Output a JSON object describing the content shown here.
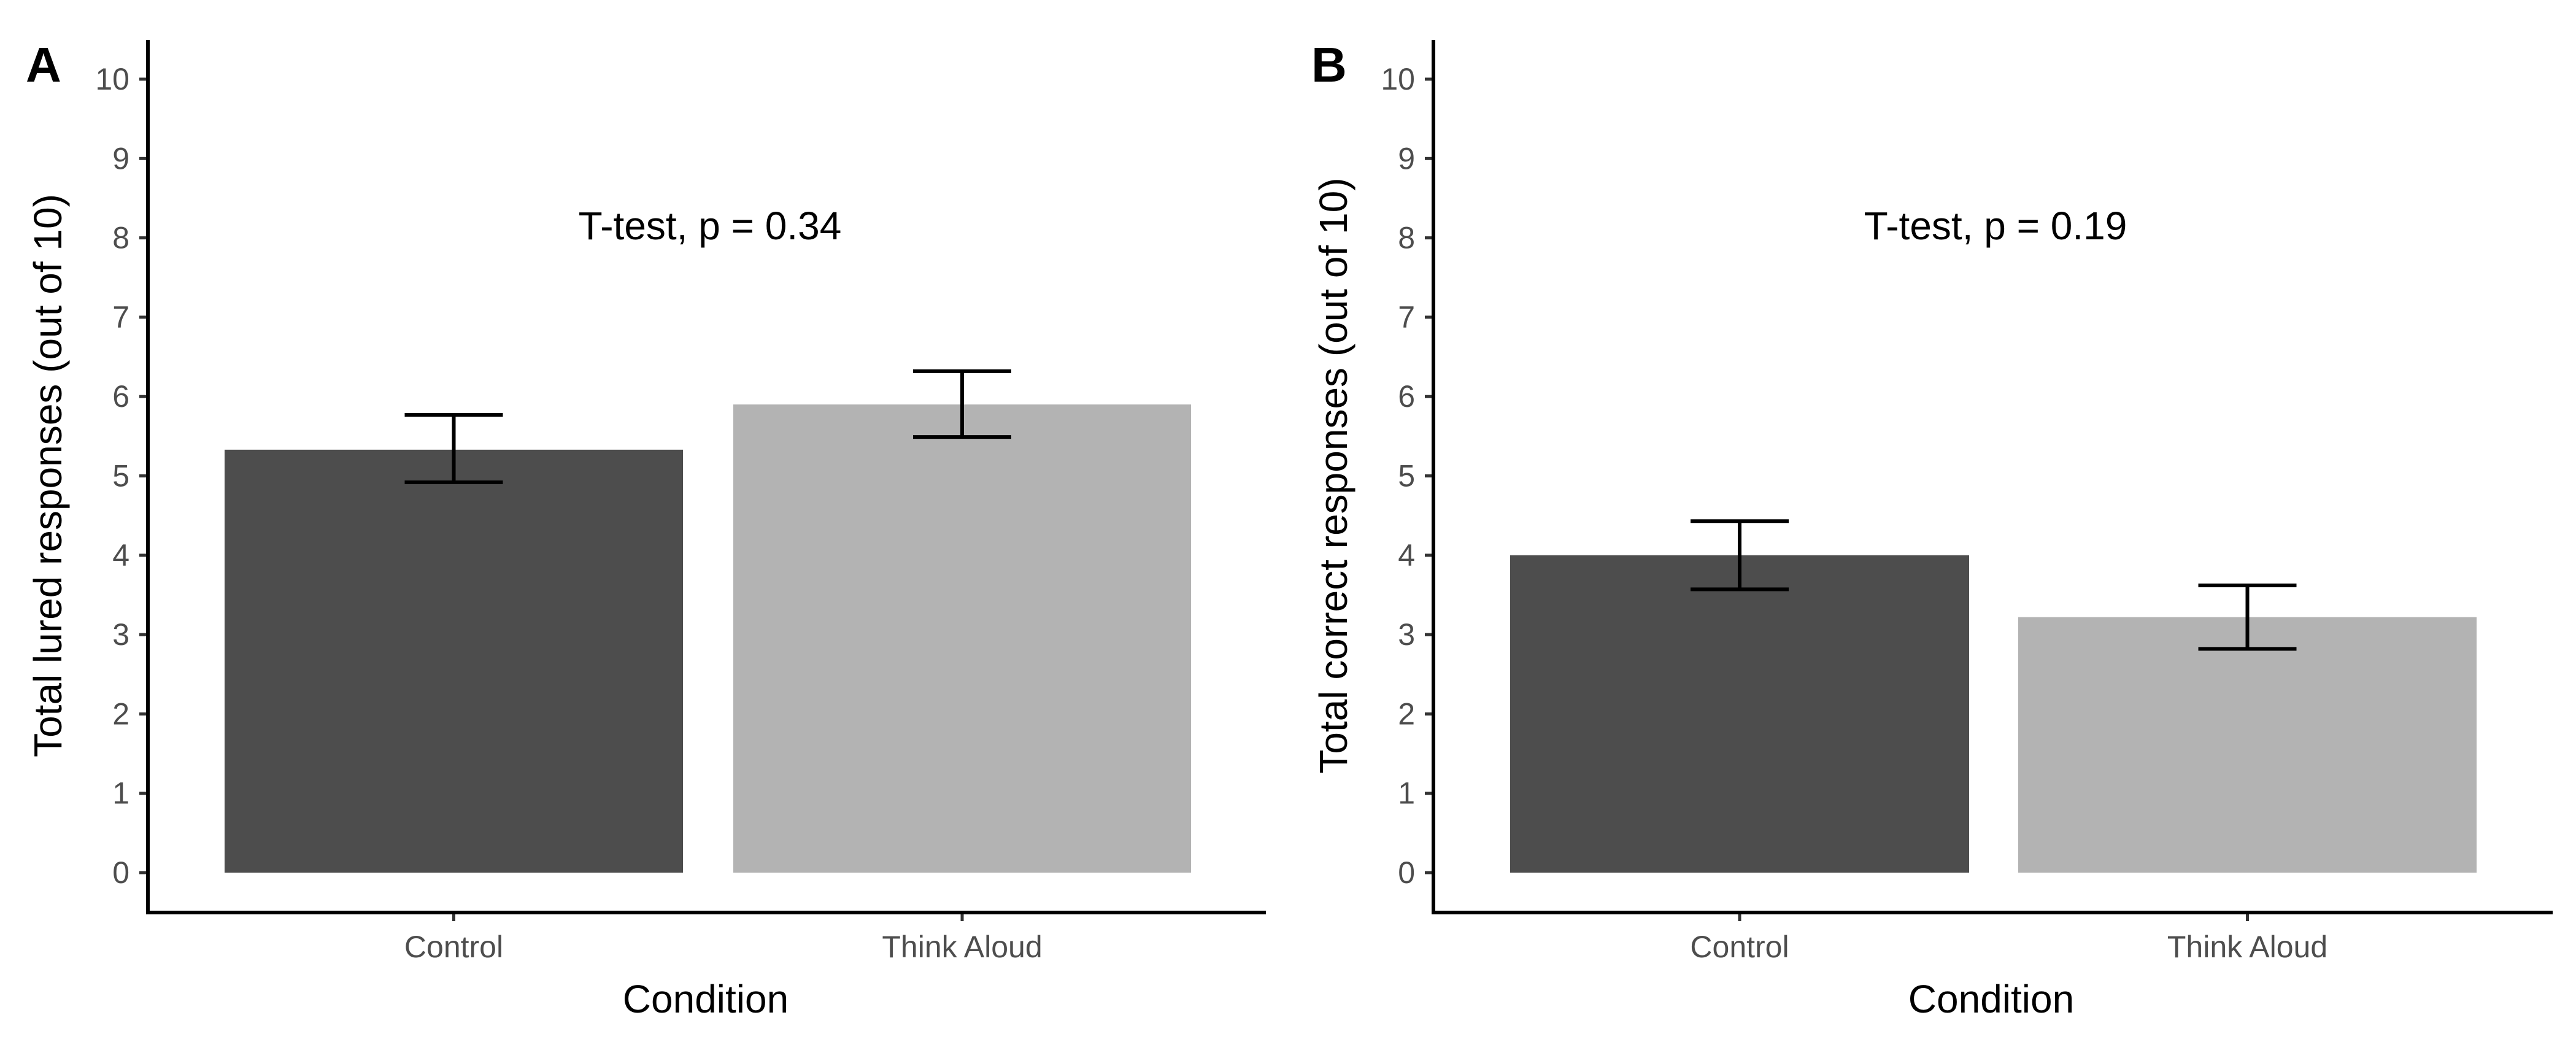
{
  "chart_data": [
    {
      "type": "bar",
      "panel": "A",
      "categories": [
        "Control",
        "Think Aloud"
      ],
      "values": [
        5.33,
        5.9
      ],
      "error_low": [
        4.92,
        5.49
      ],
      "error_high": [
        5.77,
        6.32
      ],
      "bar_colors": [
        "#4d4d4d",
        "#b3b3b3"
      ],
      "annotation": "T-test, p = 0.34",
      "xlabel": "Condition",
      "ylabel": "Total lured responses (out of 10)",
      "ylim": [
        0,
        10
      ],
      "yticks": [
        "0",
        "1",
        "2",
        "3",
        "4",
        "5",
        "6",
        "7",
        "8",
        "9",
        "10"
      ],
      "grid": false
    },
    {
      "type": "bar",
      "panel": "B",
      "categories": [
        "Control",
        "Think Aloud"
      ],
      "values": [
        4.0,
        3.22
      ],
      "error_low": [
        3.57,
        2.82
      ],
      "error_high": [
        4.43,
        3.62
      ],
      "bar_colors": [
        "#4d4d4d",
        "#b3b3b3"
      ],
      "annotation": "T-test, p = 0.19",
      "xlabel": "Condition",
      "ylabel": "Total correct responses (out of 10)",
      "ylim": [
        0,
        10
      ],
      "yticks": [
        "0",
        "1",
        "2",
        "3",
        "4",
        "5",
        "6",
        "7",
        "8",
        "9",
        "10"
      ],
      "grid": false
    }
  ]
}
